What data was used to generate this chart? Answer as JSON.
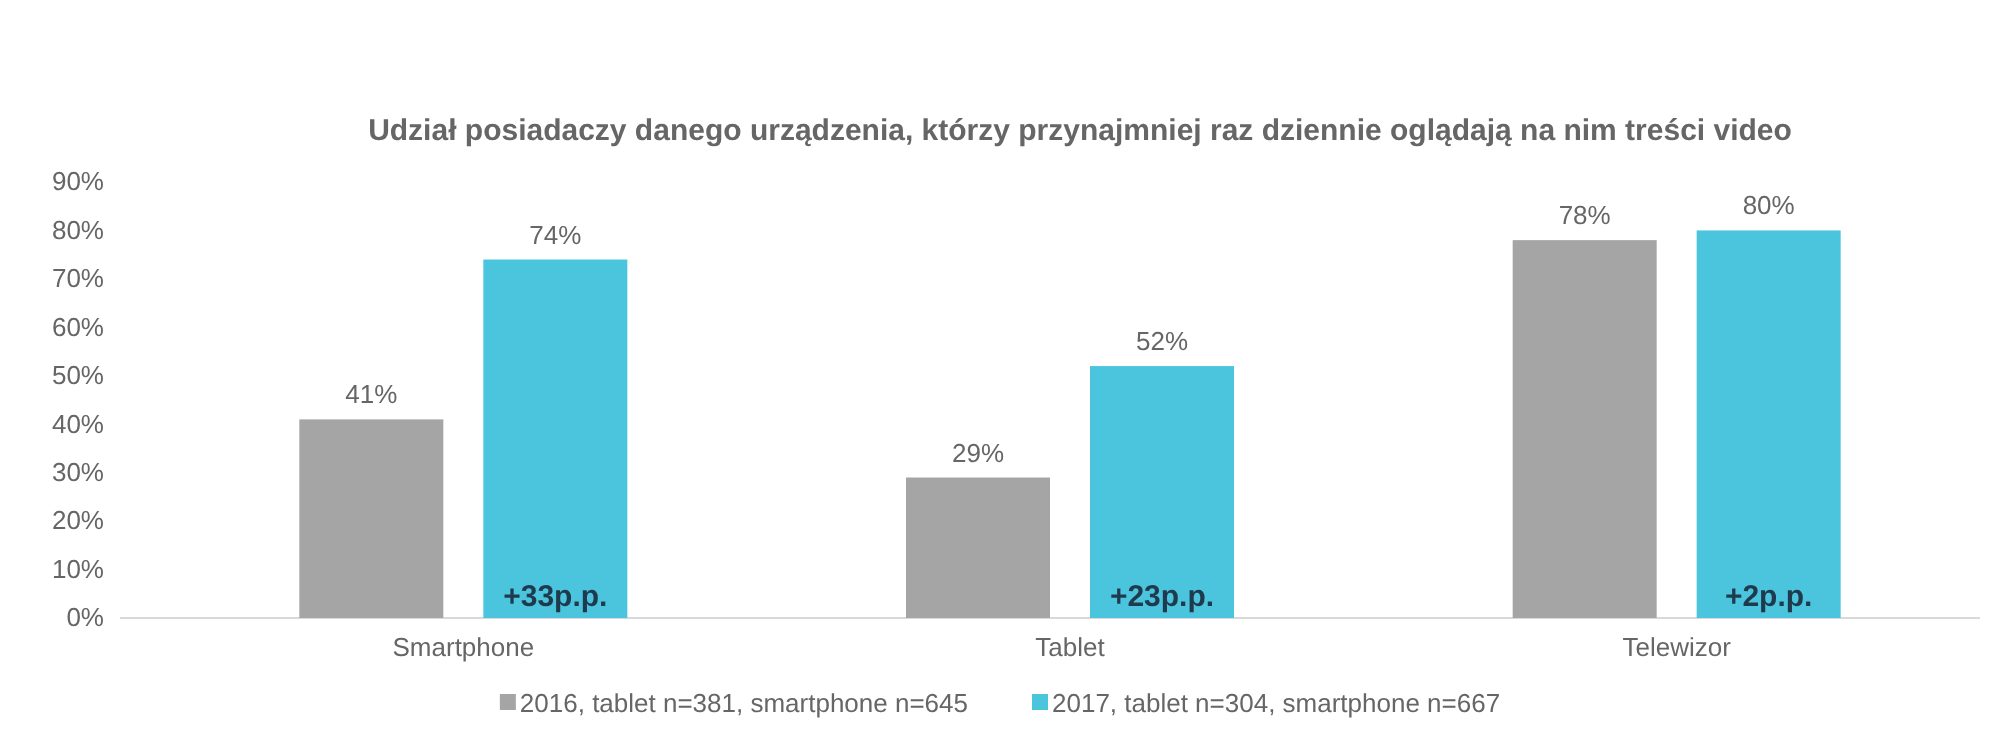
{
  "chart_data": {
    "type": "bar",
    "title": "Udział posiadaczy danego urządzenia, którzy przynajmniej raz dziennie oglądają na nim treści video",
    "categories": [
      "Smartphone",
      "Tablet",
      "Telewizor"
    ],
    "series": [
      {
        "name": "2016, tablet n=381, smartphone n=645",
        "color": "#a5a5a5",
        "values": [
          41,
          29,
          78
        ],
        "value_labels": [
          "41%",
          "29%",
          "78%"
        ]
      },
      {
        "name": "2017, tablet n=304, smartphone n=667",
        "color": "#4bc4de",
        "values": [
          74,
          52,
          80
        ],
        "value_labels": [
          "74%",
          "52%",
          "80%"
        ]
      }
    ],
    "ylim": [
      0,
      90
    ],
    "yticks": [
      {
        "value": 0,
        "label": "0%"
      },
      {
        "value": 10,
        "label": "10%"
      },
      {
        "value": 20,
        "label": "20%"
      },
      {
        "value": 30,
        "label": "30%"
      },
      {
        "value": 40,
        "label": "40%"
      },
      {
        "value": 50,
        "label": "50%"
      },
      {
        "value": 60,
        "label": "60%"
      },
      {
        "value": 70,
        "label": "70%"
      },
      {
        "value": 80,
        "label": "80%"
      },
      {
        "value": 90,
        "label": "90%"
      }
    ],
    "grid": false,
    "legend": "bottom",
    "annotations": [
      "+33p.p.",
      "+23p.p.",
      "+2p.p."
    ]
  }
}
